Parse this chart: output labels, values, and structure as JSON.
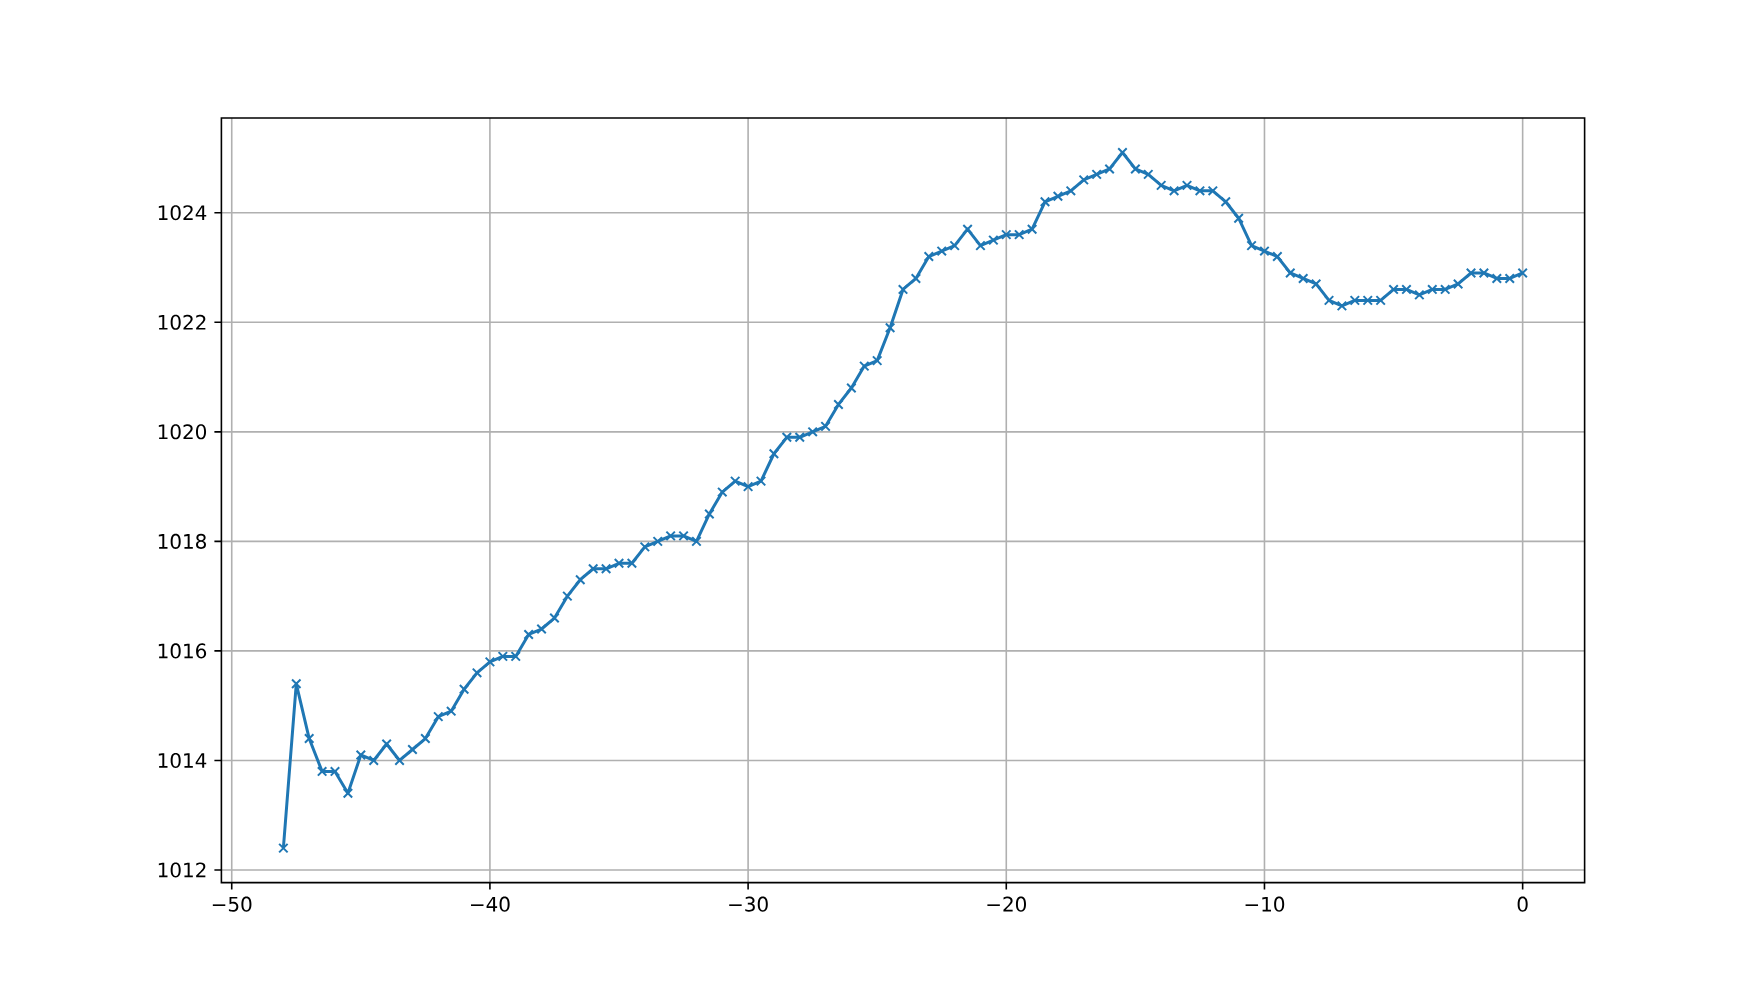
{
  "chart_data": {
    "type": "line",
    "color": "#1f77b4",
    "marker": "cross",
    "line_style": "solid",
    "grid": true,
    "xlim": [
      -50.4,
      2.4
    ],
    "ylim": [
      1011.77,
      1025.73
    ],
    "xticks": [
      {
        "value": -50,
        "label": "−50"
      },
      {
        "value": -40,
        "label": "−40"
      },
      {
        "value": -30,
        "label": "−30"
      },
      {
        "value": -20,
        "label": "−20"
      },
      {
        "value": -10,
        "label": "−10"
      },
      0
    ],
    "yticks": [
      1012,
      1014,
      1016,
      1018,
      1020,
      1022,
      1024
    ],
    "x": [
      -48,
      -47.5,
      -47,
      -46.5,
      -46,
      -45.5,
      -45,
      -44.5,
      -44,
      -43.5,
      -43,
      -42.5,
      -42,
      -41.5,
      -41,
      -40.5,
      -40,
      -39.5,
      -39,
      -38.5,
      -38,
      -37.5,
      -37,
      -36.5,
      -36,
      -35.5,
      -35,
      -34.5,
      -34,
      -33.5,
      -33,
      -32.5,
      -32,
      -31.5,
      -31,
      -30.5,
      -30,
      -29.5,
      -29,
      -28.5,
      -28,
      -27.5,
      -27,
      -26.5,
      -26,
      -25.5,
      -25,
      -24.5,
      -24,
      -23.5,
      -23,
      -22.5,
      -22,
      -21.5,
      -21,
      -20.5,
      -20,
      -19.5,
      -19,
      -18.5,
      -18,
      -17.5,
      -17,
      -16.5,
      -16,
      -15.5,
      -15,
      -14.5,
      -14,
      -13.5,
      -13,
      -12.5,
      -12,
      -11.5,
      -11,
      -10.5,
      -10,
      -9.5,
      -9,
      -8.5,
      -8,
      -7.5,
      -7,
      -6.5,
      -6,
      -5.5,
      -5,
      -4.5,
      -4,
      -3.5,
      -3,
      -2.5,
      -2,
      -1.5,
      -1,
      -0.5,
      0
    ],
    "values": [
      1012.4,
      1015.4,
      1014.4,
      1013.8,
      1013.8,
      1013.4,
      1014.1,
      1014.0,
      1014.3,
      1014.0,
      1014.2,
      1014.4,
      1014.8,
      1014.9,
      1015.3,
      1015.6,
      1015.8,
      1015.9,
      1015.9,
      1016.3,
      1016.4,
      1016.6,
      1017.0,
      1017.3,
      1017.5,
      1017.5,
      1017.6,
      1017.6,
      1017.9,
      1018.0,
      1018.1,
      1018.1,
      1018.0,
      1018.5,
      1018.9,
      1019.1,
      1019.0,
      1019.1,
      1019.6,
      1019.9,
      1019.9,
      1020.0,
      1020.1,
      1020.5,
      1020.8,
      1021.2,
      1021.3,
      1021.9,
      1022.6,
      1022.8,
      1023.2,
      1023.3,
      1023.4,
      1023.7,
      1023.4,
      1023.5,
      1023.6,
      1023.6,
      1023.7,
      1024.2,
      1024.3,
      1024.4,
      1024.6,
      1024.7,
      1024.8,
      1025.1,
      1024.8,
      1024.7,
      1024.5,
      1024.4,
      1024.5,
      1024.4,
      1024.4,
      1024.2,
      1023.9,
      1023.4,
      1023.3,
      1023.2,
      1022.9,
      1022.8,
      1022.7,
      1022.4,
      1022.3,
      1022.4,
      1022.4,
      1022.4,
      1022.6,
      1022.6,
      1022.5,
      1022.6,
      1022.6,
      1022.7,
      1022.9,
      1022.9,
      1022.8,
      1022.8,
      1022.9
    ]
  }
}
